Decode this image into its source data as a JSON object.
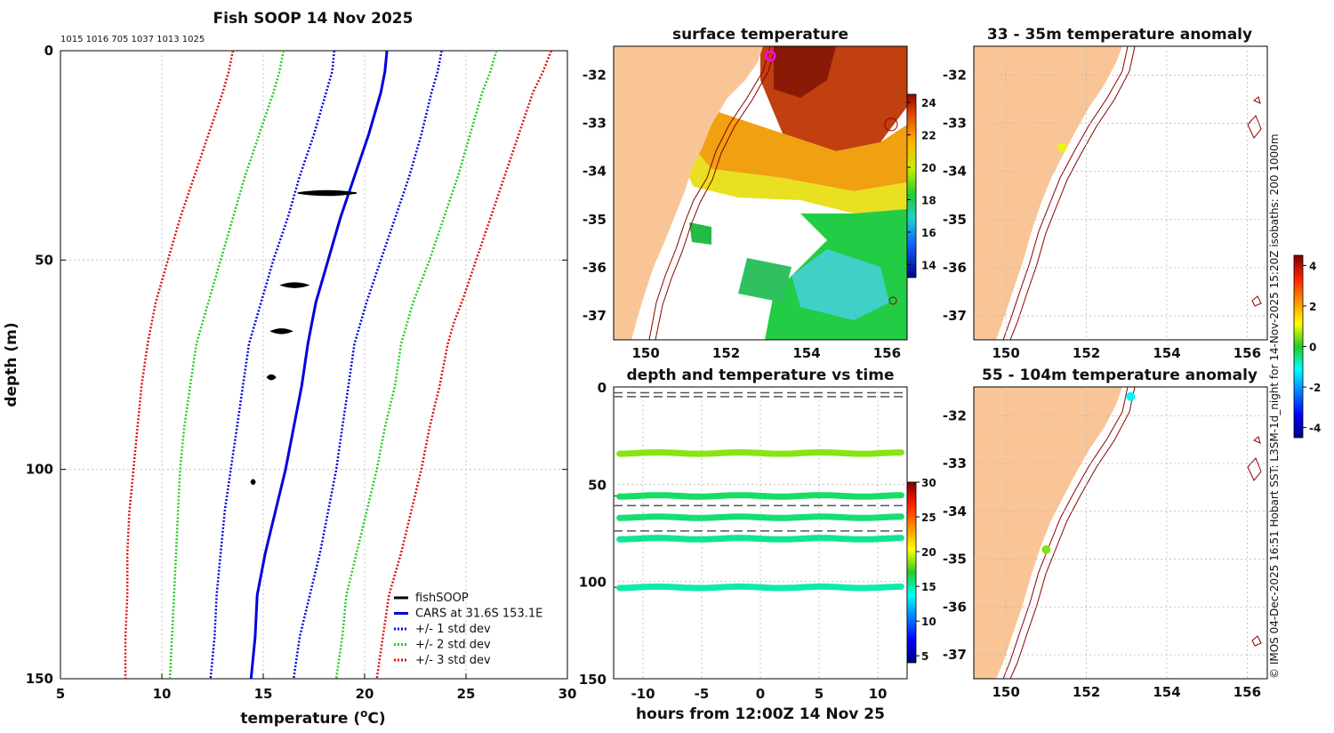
{
  "page": {
    "credit": "© IMOS 04-Dec-2025 16:51 Hobart SST: L3SM-1d_night for 14-Nov-2025 15:20Z isobaths: 200  1000m"
  },
  "chart_data": [
    {
      "type": "line",
      "title": "Fish SOOP 14 Nov 2025",
      "subtitle": "1015 1016 705 1037 1013 1025",
      "xlabel": "temperature (°C)",
      "xlabel_main": "temperature (",
      "xlabel_sup": "o",
      "xlabel_unit": "C)",
      "ylabel": "depth (m)",
      "xlim": [
        5,
        30
      ],
      "ylim": [
        150,
        0
      ],
      "xticks": [
        "5",
        "10",
        "15",
        "20",
        "25",
        "30"
      ],
      "yticks": [
        "0",
        "50",
        "100",
        "150"
      ],
      "depth": [
        0,
        5,
        10,
        20,
        30,
        40,
        50,
        60,
        65,
        70,
        80,
        90,
        100,
        110,
        120,
        130,
        140,
        150
      ],
      "series": [
        {
          "name": "CARS at 31.6S 153.1E",
          "style": "solid",
          "color": "#0000dd",
          "values": [
            21.1,
            21.0,
            20.8,
            20.2,
            19.5,
            18.8,
            18.2,
            17.6,
            17.4,
            17.2,
            16.9,
            16.5,
            16.1,
            15.6,
            15.1,
            14.7,
            14.6,
            14.4
          ]
        },
        {
          "name": "-1 std",
          "style": "dotted",
          "color": "#0000dd",
          "values": [
            18.5,
            18.4,
            18.1,
            17.5,
            16.8,
            16.2,
            15.5,
            14.9,
            14.6,
            14.3,
            14.0,
            13.7,
            13.4,
            13.1,
            12.9,
            12.7,
            12.6,
            12.4
          ]
        },
        {
          "name": "+1 std",
          "style": "dotted",
          "color": "#0000dd",
          "values": [
            23.8,
            23.6,
            23.3,
            22.8,
            22.2,
            21.5,
            20.8,
            20.1,
            19.8,
            19.5,
            19.2,
            18.9,
            18.6,
            18.2,
            17.8,
            17.3,
            16.8,
            16.5
          ]
        },
        {
          "name": "-2 std",
          "style": "dotted",
          "color": "#22cc22",
          "values": [
            16.0,
            15.8,
            15.5,
            14.8,
            14.1,
            13.5,
            12.9,
            12.3,
            12.0,
            11.7,
            11.4,
            11.1,
            10.9,
            10.8,
            10.7,
            10.6,
            10.5,
            10.4
          ]
        },
        {
          "name": "+2 std",
          "style": "dotted",
          "color": "#22cc22",
          "values": [
            26.5,
            26.2,
            25.8,
            25.2,
            24.6,
            23.9,
            23.2,
            22.4,
            22.1,
            21.8,
            21.5,
            21.0,
            20.6,
            20.1,
            19.6,
            19.1,
            18.9,
            18.6
          ]
        },
        {
          "name": "-3 std",
          "style": "dotted",
          "color": "#dd1111",
          "values": [
            13.5,
            13.3,
            13.0,
            12.3,
            11.6,
            10.9,
            10.3,
            9.7,
            9.5,
            9.3,
            9.0,
            8.8,
            8.6,
            8.4,
            8.3,
            8.3,
            8.2,
            8.2
          ]
        },
        {
          "name": "+3 std",
          "style": "dotted",
          "color": "#dd1111",
          "values": [
            29.2,
            28.8,
            28.3,
            27.6,
            26.9,
            26.2,
            25.5,
            24.8,
            24.4,
            24.1,
            23.7,
            23.2,
            22.8,
            22.3,
            21.8,
            21.2,
            20.9,
            20.6
          ]
        }
      ],
      "fishsoop": [
        {
          "depth": 34,
          "tmin": 16.7,
          "tmax": 19.6
        },
        {
          "depth": 56,
          "tmin": 15.9,
          "tmax": 17.2
        },
        {
          "depth": 67,
          "tmin": 15.4,
          "tmax": 16.4
        },
        {
          "depth": 78,
          "tmin": 15.2,
          "tmax": 15.6
        },
        {
          "depth": 103,
          "tmin": 14.4,
          "tmax": 14.6
        }
      ],
      "legend": [
        {
          "label": "fishSOOP",
          "color": "#000000",
          "style": "solid"
        },
        {
          "label": "CARS at 31.6S 153.1E",
          "color": "#0000dd",
          "style": "solid"
        },
        {
          "label": "+/- 1 std dev",
          "color": "#0000dd",
          "style": "dotted"
        },
        {
          "label": "+/- 2 std dev",
          "color": "#22cc22",
          "style": "dotted"
        },
        {
          "label": "+/- 3 std dev",
          "color": "#dd1111",
          "style": "dotted"
        }
      ],
      "legend_position": "bottom-right"
    },
    {
      "type": "heatmap",
      "title": "surface temperature",
      "xlim": [
        149.2,
        156.5
      ],
      "ylim": [
        -37.5,
        -31.4
      ],
      "xticks": [
        "150",
        "152",
        "154",
        "156"
      ],
      "yticks": [
        "-32",
        "-33",
        "-34",
        "-35",
        "-36",
        "-37"
      ],
      "colorbar": {
        "ticks": [
          "14",
          "16",
          "18",
          "20",
          "22",
          "24"
        ],
        "range": [
          13.2,
          24.5
        ]
      },
      "marker": {
        "lon": 153.1,
        "lat": -31.6
      }
    },
    {
      "type": "heatmap",
      "title": "33 - 35m temperature anomaly",
      "xlim": [
        149.2,
        156.5
      ],
      "ylim": [
        -37.5,
        -31.4
      ],
      "xticks": [
        "150",
        "152",
        "154",
        "156"
      ],
      "yticks": [
        "-32",
        "-33",
        "-34",
        "-35",
        "-36",
        "-37"
      ],
      "points": [
        {
          "lon": 151.4,
          "lat": -33.5,
          "value": 1.0
        }
      ]
    },
    {
      "type": "heatmap",
      "title": "55 - 104m temperature anomaly",
      "xlim": [
        149.2,
        156.5
      ],
      "ylim": [
        -37.5,
        -31.4
      ],
      "xticks": [
        "150",
        "152",
        "154",
        "156"
      ],
      "yticks": [
        "-32",
        "-33",
        "-34",
        "-35",
        "-36",
        "-37"
      ],
      "points": [
        {
          "lon": 151.0,
          "lat": -34.8,
          "value": 0.5
        },
        {
          "lon": 153.1,
          "lat": -31.6,
          "value": -1.2
        }
      ],
      "colorbar": {
        "ticks": [
          "4",
          "2",
          "0",
          "-2",
          "-4"
        ],
        "range": [
          -4.5,
          4.5
        ]
      }
    },
    {
      "type": "scatter",
      "title": "depth and temperature vs time",
      "xlabel": "hours from 12:00Z 14 Nov 25",
      "ylabel": "",
      "xlim": [
        -12.5,
        12.5
      ],
      "ylim": [
        150,
        0
      ],
      "xticks": [
        "-10",
        "-5",
        "0",
        "5",
        "10"
      ],
      "yticks": [
        "0",
        "50",
        "100",
        "150"
      ],
      "tracks": [
        {
          "depth": 34,
          "temp": 18.5
        },
        {
          "depth": 56,
          "temp": 16.0
        },
        {
          "depth": 67,
          "temp": 15.8
        },
        {
          "depth": 78,
          "temp": 15.4
        },
        {
          "depth": 103,
          "temp": 15.0
        }
      ],
      "dashed_depths": [
        3,
        5,
        56,
        61,
        74,
        103
      ],
      "colorbar": {
        "ticks": [
          "30",
          "25",
          "20",
          "15",
          "10",
          "5"
        ],
        "range": [
          4,
          30
        ]
      }
    }
  ]
}
